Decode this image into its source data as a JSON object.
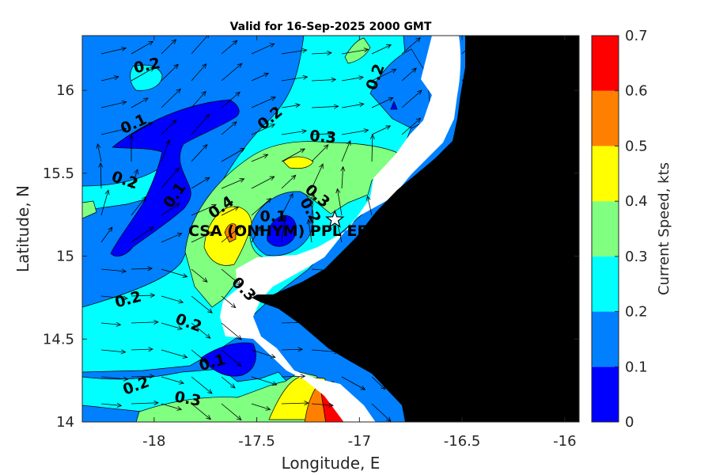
{
  "title": "Valid for 16-Sep-2025 2000 GMT",
  "xlabel": "Longitude, E",
  "ylabel": "Latitude, N",
  "colorbar_label": "Current Speed, kts",
  "colorbar": {
    "ticks": [
      "0",
      "0.1",
      "0.2",
      "0.3",
      "0.4",
      "0.5",
      "0.6",
      "0.7"
    ],
    "colors": [
      "#0000ff",
      "#0080ff",
      "#00ffff",
      "#80ff80",
      "#ffff00",
      "#ff8000",
      "#ff0000"
    ]
  },
  "site_label": "CSA (ONHYM) PPL EF",
  "colors": {
    "land": "#000000",
    "mask": "#ffffff",
    "contour_line": "#000000",
    "arrow": "#000000"
  },
  "chart_data": {
    "type": "heatmap",
    "title": "Valid for 16-Sep-2025 2000 GMT",
    "xlabel": "Longitude, E",
    "ylabel": "Latitude, N",
    "xlim": [
      -18.35,
      -15.93
    ],
    "ylim": [
      14.0,
      16.33
    ],
    "x_ticks": [
      "-18",
      "-17.5",
      "-17",
      "-16.5",
      "-16"
    ],
    "y_ticks": [
      "14",
      "14.5",
      "15",
      "15.5",
      "16"
    ],
    "clim": [
      0,
      0.7
    ],
    "colorbar_label": "Current Speed, kts",
    "contour_labels": [
      {
        "text": "0.2",
        "lon": -18.03,
        "lat": 16.12
      },
      {
        "text": "0.1",
        "lon": -18.09,
        "lat": 15.77
      },
      {
        "text": "0.2",
        "lon": -18.15,
        "lat": 15.43
      },
      {
        "text": "0.1",
        "lon": -17.88,
        "lat": 15.35
      },
      {
        "text": "0.2",
        "lon": -17.42,
        "lat": 15.81
      },
      {
        "text": "0.3",
        "lon": -17.18,
        "lat": 15.69
      },
      {
        "text": "0.2",
        "lon": -16.9,
        "lat": 16.07
      },
      {
        "text": "0.4",
        "lon": -17.66,
        "lat": 15.27
      },
      {
        "text": "0.3",
        "lon": -17.22,
        "lat": 15.34
      },
      {
        "text": "0.2",
        "lon": -17.26,
        "lat": 15.26
      },
      {
        "text": "0.1",
        "lon": -17.42,
        "lat": 15.21
      },
      {
        "text": "0.3",
        "lon": -17.58,
        "lat": 14.78
      },
      {
        "text": "0.2",
        "lon": -18.12,
        "lat": 14.71
      },
      {
        "text": "0.2",
        "lon": -17.84,
        "lat": 14.57
      },
      {
        "text": "0.1",
        "lon": -17.71,
        "lat": 14.33
      },
      {
        "text": "0.2",
        "lon": -18.08,
        "lat": 14.19
      },
      {
        "text": "0.3",
        "lon": -17.84,
        "lat": 14.11
      }
    ],
    "site": {
      "name": "CSA (ONHYM) PPL EF",
      "lon": -17.12,
      "lat": 15.22,
      "marker": "star"
    }
  }
}
